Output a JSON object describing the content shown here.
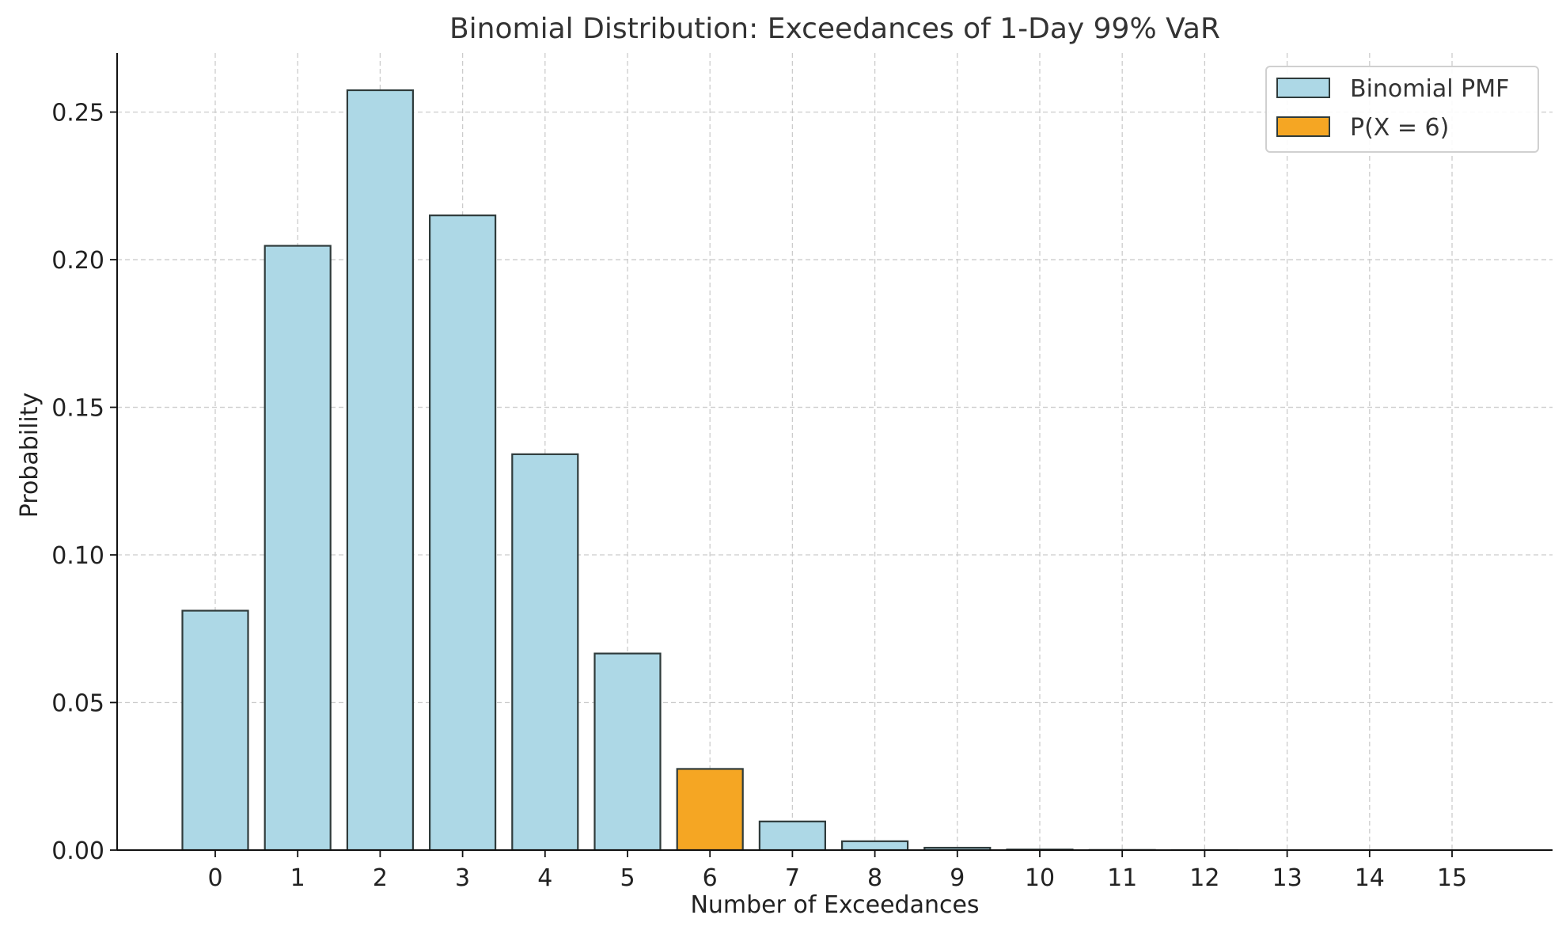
{
  "chart_data": {
    "type": "bar",
    "title": "Binomial Distribution: Exceedances of 1-Day 99% VaR",
    "xlabel": "Number of Exceedances",
    "ylabel": "Probability",
    "categories": [
      "0",
      "1",
      "2",
      "3",
      "4",
      "5",
      "6",
      "7",
      "8",
      "9",
      "10",
      "11",
      "12",
      "13",
      "14",
      "15"
    ],
    "series": [
      {
        "name": "Binomial PMF",
        "color": "#add8e6",
        "values": [
          0.0811,
          0.2047,
          0.2574,
          0.215,
          0.1341,
          0.0666,
          0.0275,
          0.0097,
          0.003,
          0.0008,
          0.0002,
          5e-05,
          1e-05,
          0.0,
          0.0,
          0.0
        ]
      }
    ],
    "highlight": {
      "name": "P(X = 6)",
      "index": 6,
      "value": 0.0275,
      "color": "#f5a623"
    },
    "bar_edge_color": "#2f3b3b",
    "yticks": [
      "0.00",
      "0.05",
      "0.10",
      "0.15",
      "0.20",
      "0.25"
    ],
    "ylim": [
      0,
      0.27
    ],
    "grid": true,
    "legend_position": "top-right"
  }
}
